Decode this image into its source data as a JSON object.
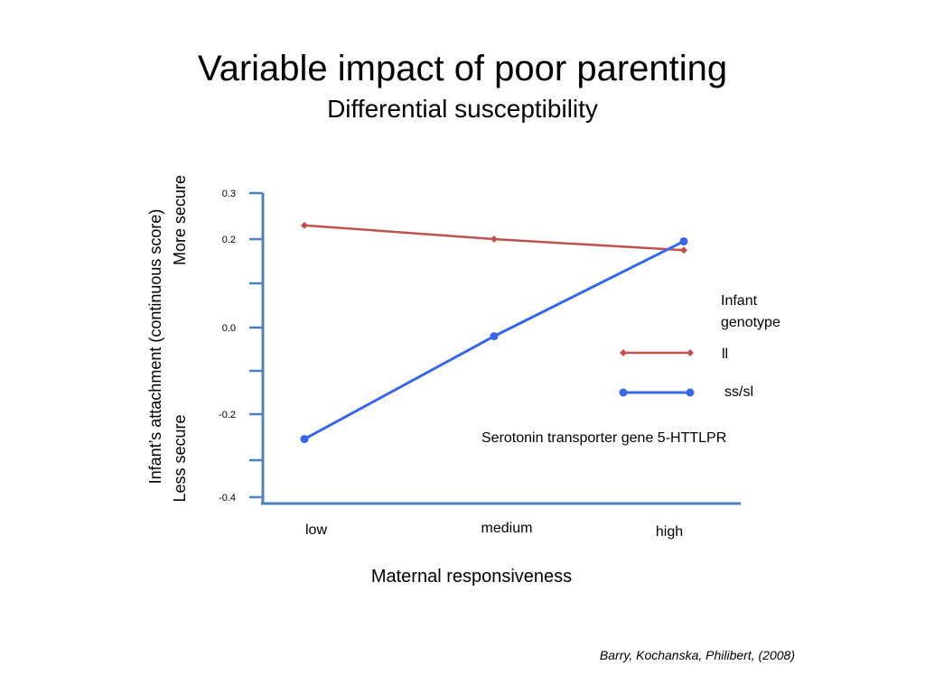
{
  "slide": {
    "title": "Variable impact of poor parenting",
    "subtitle": "Differential susceptibility",
    "credit": "Barry, Kochanska, Philibert, (2008)"
  },
  "chart_data": {
    "type": "line",
    "categories": [
      "low",
      "medium",
      "high"
    ],
    "ylabel": "Infant’s attachment (continuous score)",
    "y_top_label": "More secure",
    "y_bottom_label": "Less secure",
    "xlabel": "Maternal responsiveness",
    "yticks": [
      "0.3",
      "0.2",
      "0.0",
      "-0.2",
      "-0.4"
    ],
    "ytick_values": [
      0.3,
      0.2,
      0.0,
      -0.2,
      -0.4
    ],
    "ylim": [
      -0.4,
      0.3
    ],
    "legend_title": "Infant genotype",
    "legend_title_lines": [
      "Infant",
      "genotype"
    ],
    "annotation": "Serotonin transporter gene  5-HTTLPR",
    "series": [
      {
        "name": "ll",
        "color": "#c0504d",
        "marker": "diamond",
        "values": [
          0.23,
          0.2,
          0.175
        ]
      },
      {
        "name": "ss/sl",
        "color": "#3a66e6",
        "marker": "circle",
        "values": [
          -0.26,
          -0.02,
          0.195
        ]
      }
    ],
    "axis_color": "#4f81bd"
  }
}
